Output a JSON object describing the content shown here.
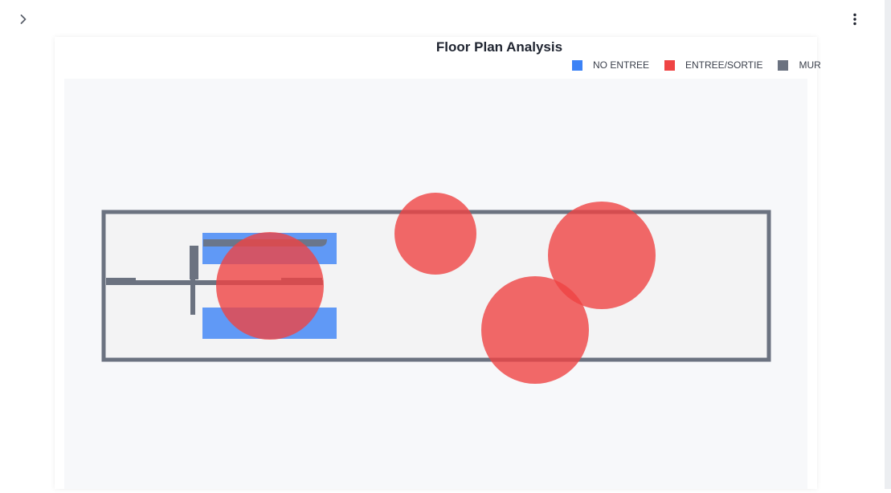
{
  "app": {
    "sidebar_toggle_icon": "chevron-right-icon",
    "menu_icon": "vertical-ellipsis-icon"
  },
  "chart_data": {
    "type": "scatter",
    "title": "Floor Plan Analysis",
    "legend_position": "top-right",
    "legend": [
      {
        "label": "NO ENTREE",
        "color": "#3b82f6"
      },
      {
        "label": "ENTREE/SORTIE",
        "color": "#ef4444"
      },
      {
        "label": "MUR",
        "color": "#6b7280"
      }
    ],
    "background": "#f7f8fa",
    "room_fill": "#f3f3f4",
    "grid": false,
    "circle_opacity": 0.8
  }
}
